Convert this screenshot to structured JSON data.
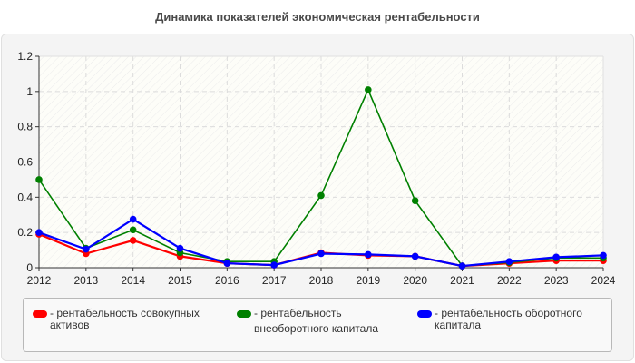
{
  "title": "Динамика показателей экономическая рентабельности",
  "chart_data": {
    "type": "line",
    "title": "Динамика показателей экономическая рентабельности",
    "xlabel": "",
    "ylabel": "",
    "x": [
      "2012",
      "2013",
      "2014",
      "2015",
      "2016",
      "2017",
      "2018",
      "2019",
      "2020",
      "2021",
      "2022",
      "2023",
      "2024"
    ],
    "ylim": [
      0,
      1.2
    ],
    "yticks": [
      "0",
      "0.2",
      "0.4",
      "0.6",
      "0.8",
      "1",
      "1.2"
    ],
    "grid": true,
    "legend_position": "bottom",
    "series": [
      {
        "name": "рентабельность совокупных активов",
        "color": "#ff0000",
        "values": [
          0.19,
          0.08,
          0.155,
          0.065,
          0.025,
          0.015,
          0.085,
          0.07,
          0.065,
          0.01,
          0.025,
          0.04,
          0.04
        ]
      },
      {
        "name": "рентабельность внеоборотного капитала",
        "color": "#008000",
        "values": [
          0.5,
          0.11,
          0.215,
          0.085,
          0.035,
          0.035,
          0.41,
          1.01,
          0.38,
          0.01,
          0.03,
          0.055,
          0.055
        ]
      },
      {
        "name": "рентабельность оборотного капитала",
        "color": "#0000ff",
        "values": [
          0.2,
          0.105,
          0.275,
          0.11,
          0.025,
          0.015,
          0.08,
          0.075,
          0.065,
          0.01,
          0.035,
          0.06,
          0.07
        ]
      }
    ]
  },
  "legend": {
    "items": [
      {
        "label": "- рентабельность совокупных\nактивов",
        "color": "#ff0000"
      },
      {
        "label": "- рентабельность\nвнеоборотного капитала",
        "color": "#008000"
      },
      {
        "label": "- рентабельность оборотного\nкапитала",
        "color": "#0000ff"
      }
    ]
  }
}
